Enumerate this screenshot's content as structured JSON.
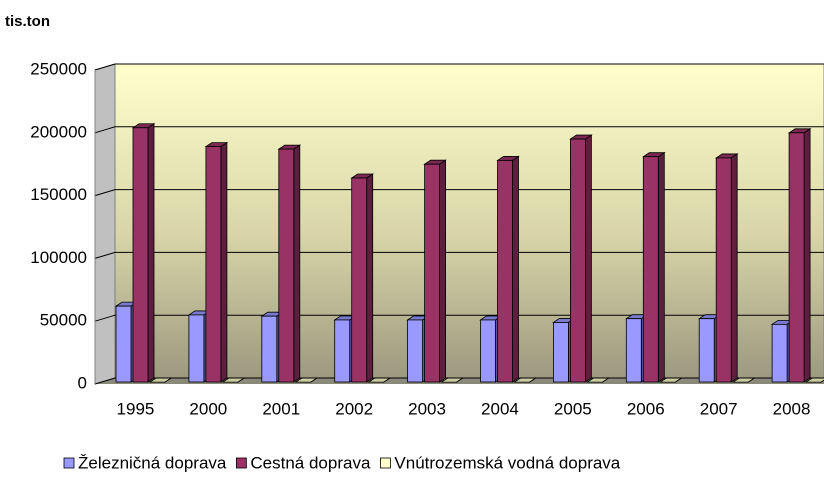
{
  "chart_data": {
    "type": "bar",
    "y_axis_title": "tis.ton",
    "categories": [
      "1995",
      "2000",
      "2001",
      "2002",
      "2003",
      "2004",
      "2005",
      "2006",
      "2007",
      "2008"
    ],
    "series": [
      {
        "name": "Železničná doprava",
        "color": "#9999ff",
        "values": [
          62000,
          55000,
          54000,
          51000,
          51000,
          51000,
          49000,
          52000,
          52000,
          47500
        ]
      },
      {
        "name": "Cestná doprava",
        "color": "#993366",
        "values": [
          204000,
          189000,
          187000,
          164000,
          175000,
          178000,
          195000,
          181000,
          180000,
          200000
        ]
      },
      {
        "name": "Vnútrozemská vodná doprava",
        "color": "#ffffcc",
        "values": [
          1500,
          1500,
          1500,
          1500,
          1500,
          1500,
          1500,
          1500,
          1500,
          1500
        ]
      }
    ],
    "ylim": [
      0,
      250000
    ],
    "yticks": [
      0,
      50000,
      100000,
      150000,
      200000,
      250000
    ],
    "grid": true,
    "legend": "bottom"
  }
}
